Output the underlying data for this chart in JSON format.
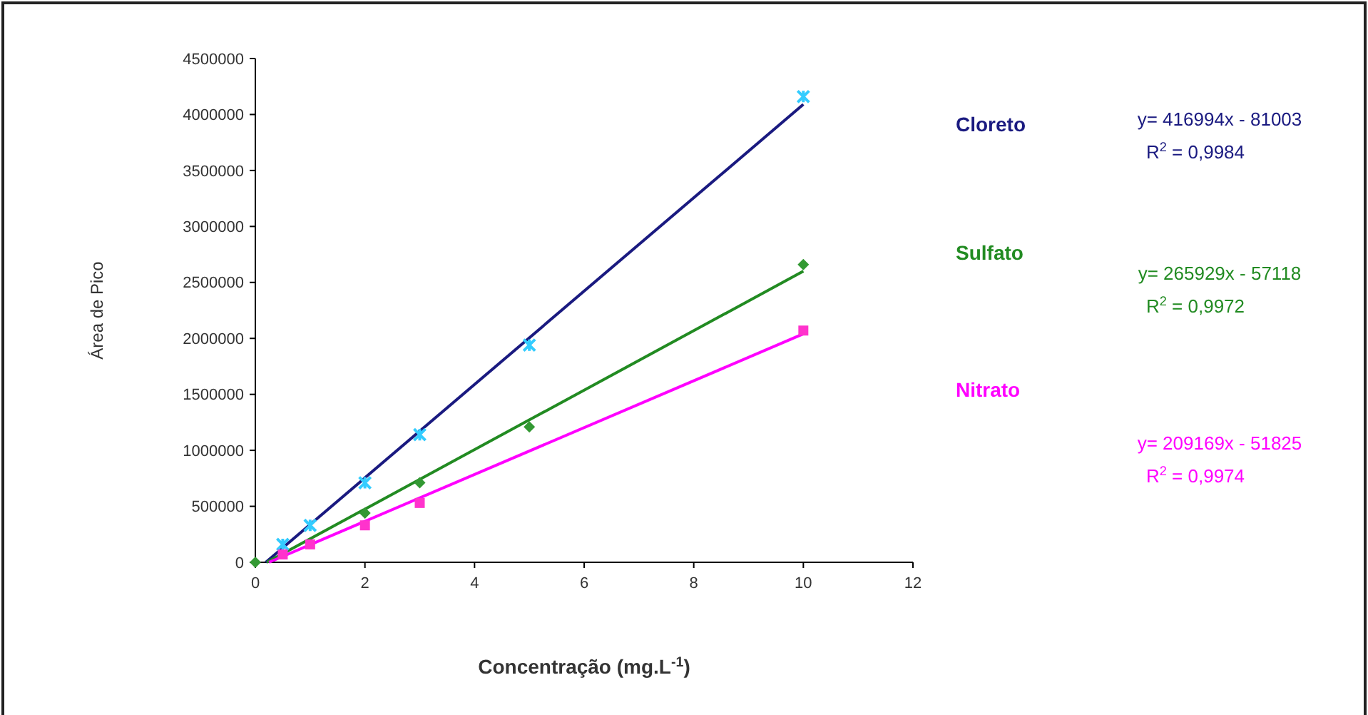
{
  "chart_data": {
    "type": "scatter",
    "xlabel": "Concentração (mg.L$^{-1}$)",
    "ylabel": "Área de Pico",
    "xlim": [
      0,
      12
    ],
    "xticks": [
      0,
      2,
      4,
      6,
      8,
      10,
      12
    ],
    "ylim": [
      0,
      4500000
    ],
    "yticks": [
      0,
      500000,
      1000000,
      1500000,
      2000000,
      2500000,
      3000000,
      3500000,
      4000000,
      4500000
    ],
    "grid": false,
    "series": [
      {
        "color": "#33ccff",
        "marker": "cross",
        "x": [
          0.5,
          1,
          2,
          3,
          5,
          10
        ],
        "values": [
          160000,
          330000,
          710000,
          1140000,
          1940000,
          4160000
        ]
      },
      {
        "color": "#339933",
        "marker": "diamond",
        "x": [
          0,
          2,
          3,
          5,
          10
        ],
        "values": [
          0,
          440000,
          710000,
          1210000,
          2660000
        ]
      },
      {
        "color": "#ff33cc",
        "marker": "square",
        "x": [
          0.5,
          1,
          2,
          3,
          10
        ],
        "values": [
          70000,
          160000,
          330000,
          530000,
          2070000
        ]
      },
      {
        "type": "line",
        "name": "Cloreto",
        "color": "#1a1a80",
        "marker": "none",
        "line_style": "solid",
        "x": [
          0.19,
          10
        ],
        "values": [
          0,
          4090000
        ]
      },
      {
        "type": "line",
        "name": "Sulfato",
        "color": "#228b22",
        "marker": "none",
        "line_style": "solid",
        "x": [
          0.21,
          10
        ],
        "values": [
          0,
          2600000
        ]
      },
      {
        "type": "line",
        "name": "Nitrato",
        "color": "#ff00ff",
        "marker": "none",
        "line_style": "solid",
        "x": [
          0.25,
          10
        ],
        "values": [
          0,
          2040000
        ]
      }
    ],
    "annotations": [
      "y= 416994x - 81003",
      "R$^{2}$ = 0,9984",
      "y= 265929x - 57118",
      "R$^{2}$ = 0,9972",
      "y= 209169x - 51825",
      "R$^{2}$ = 0,9974"
    ]
  }
}
